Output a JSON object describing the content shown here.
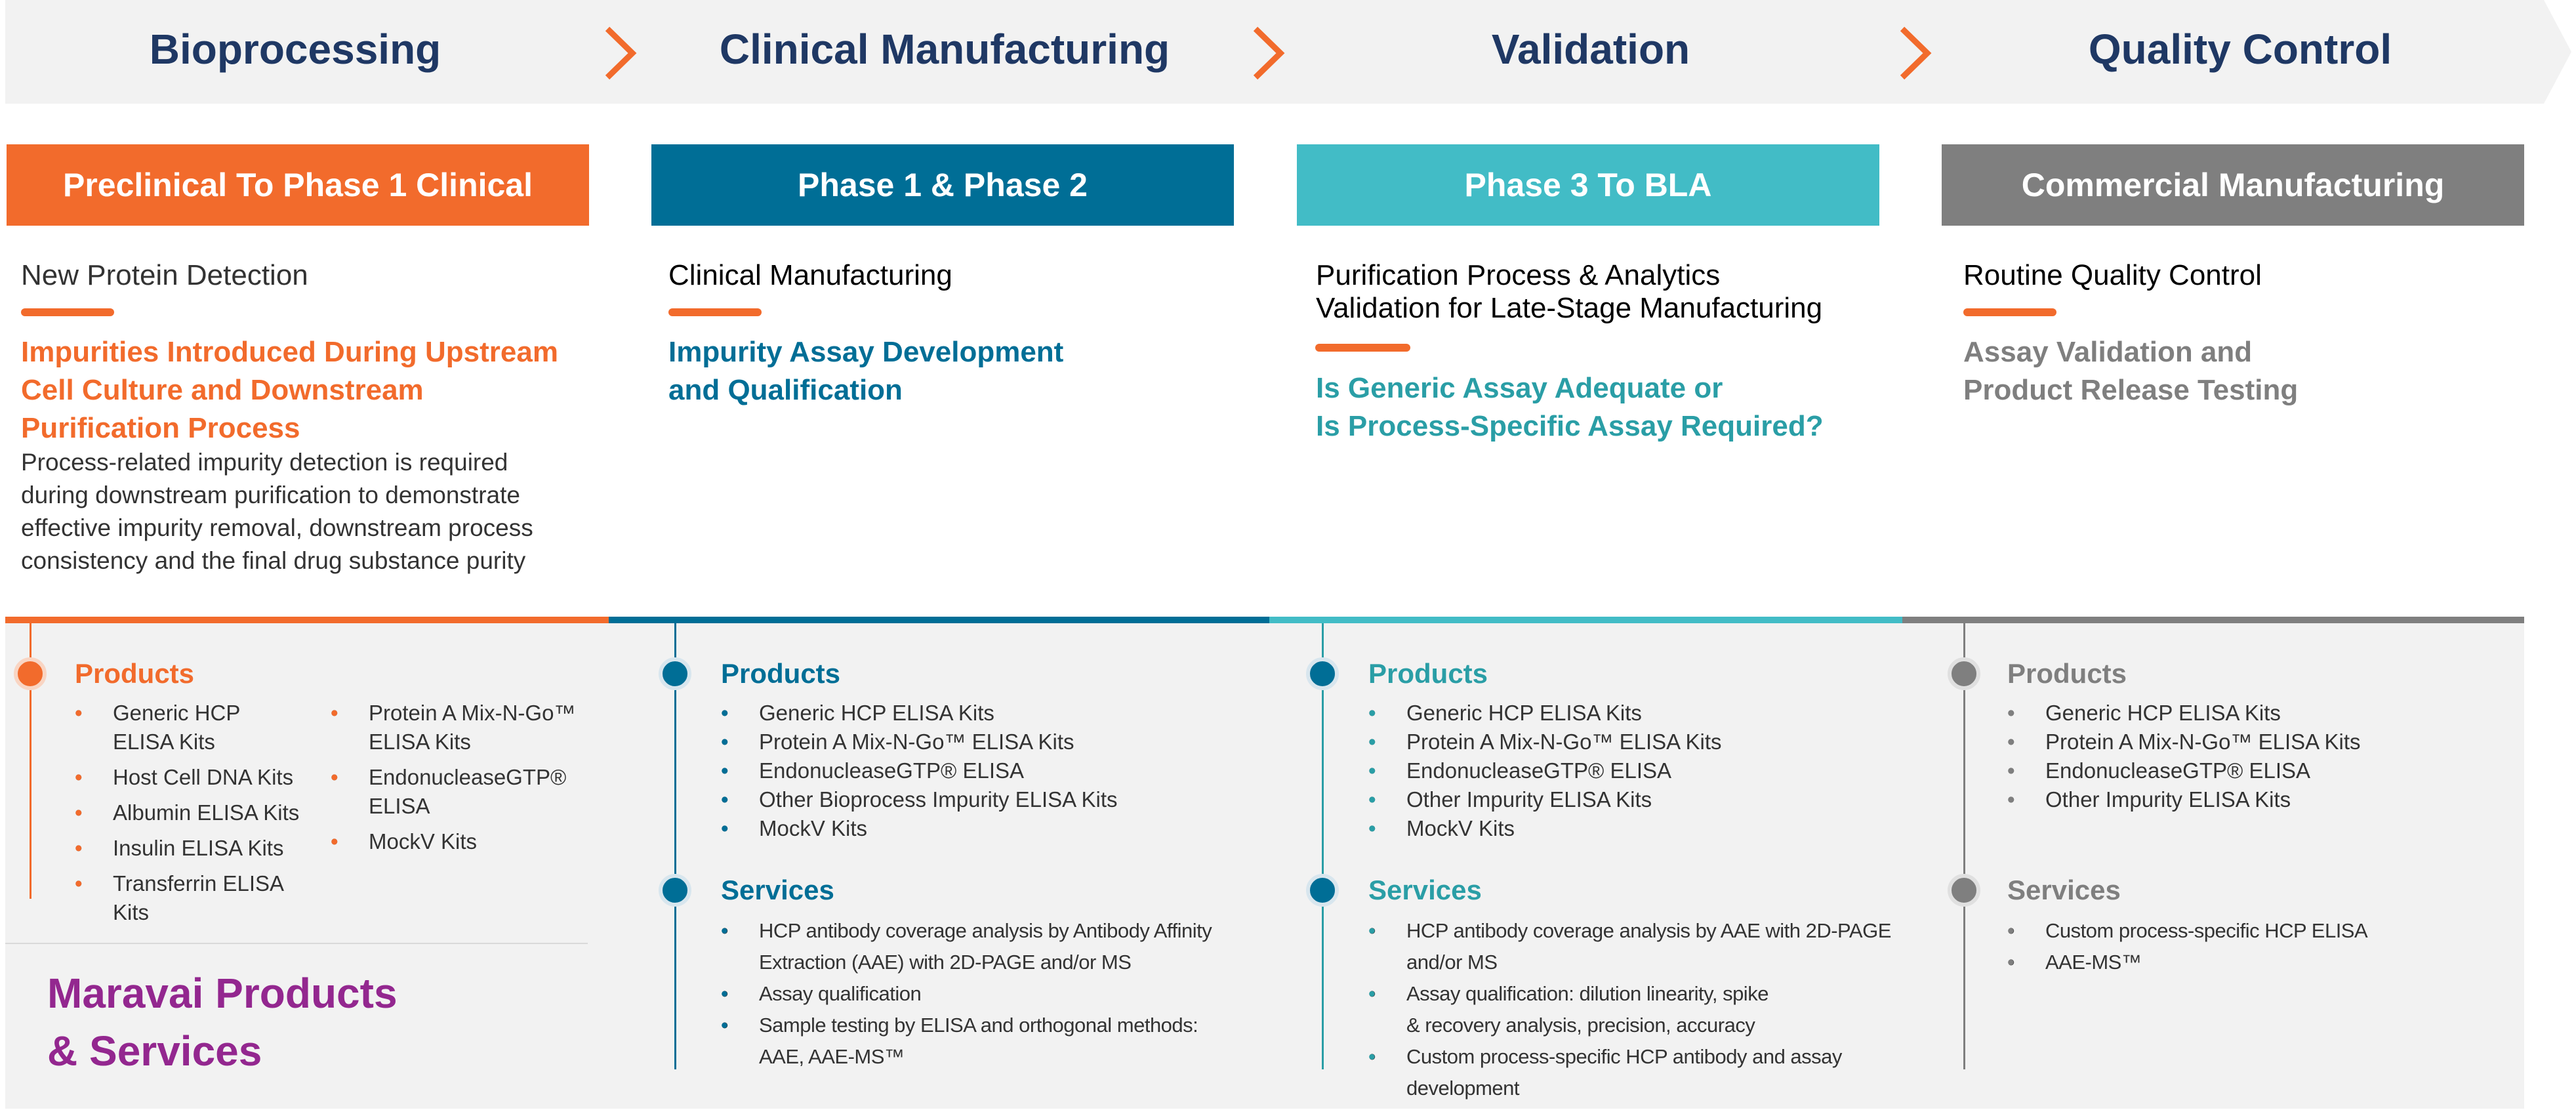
{
  "stages": [
    "Bioprocessing",
    "Clinical Manufacturing",
    "Validation",
    "Quality Control"
  ],
  "colors": {
    "orange": "#f26b2c",
    "blue": "#006e96",
    "teal": "#42bcc6",
    "gray": "#7f7f7f",
    "navy": "#1f3864",
    "purple": "#93278f",
    "teal_text": "#2a9ea6"
  },
  "columns": [
    {
      "phase": "Preclinical To Phase 1 Clinical",
      "subtitle": "New Protein Detection",
      "focus_lines": [
        "Impurities Introduced During  Upstream",
        "Cell Culture and  Downstream",
        "Purification Process"
      ],
      "description_lines": [
        "Process-related impurity detection  is required",
        "during downstream purification to demonstrate",
        "effective impurity removal,  downstream process",
        "consistency and the  final drug substance purity"
      ],
      "products_heading": "Products",
      "products_left": [
        "Generic HCP",
        "ELISA Kits",
        "Host Cell DNA Kits",
        "Albumin ELISA Kits",
        "Insulin ELISA Kits",
        "Transferrin ELISA Kits"
      ],
      "products_right": [
        "Protein A Mix-N-Go™",
        "ELISA Kits",
        "EndonucleaseGTP®",
        "ELISA",
        "MockV Kits"
      ]
    },
    {
      "phase": "Phase 1 & Phase 2",
      "subtitle": "Clinical Manufacturing",
      "focus_lines": [
        "Impurity Assay Development",
        "and Qualification"
      ],
      "products_heading": "Products",
      "products": [
        "Generic HCP ELISA Kits",
        "Protein A Mix-N-Go™ ELISA Kits",
        "EndonucleaseGTP® ELISA",
        "Other Bioprocess Impurity ELISA Kits",
        "MockV Kits"
      ],
      "services_heading": "Services",
      "services": [
        [
          "HCP antibody coverage analysis by Antibody Affinity",
          "Extraction (AAE) with 2D-PAGE and/or MS"
        ],
        [
          "Assay qualification"
        ],
        [
          "Sample testing by ELISA and orthogonal  methods:",
          "AAE, AAE-MS™"
        ]
      ]
    },
    {
      "phase": "Phase 3 To BLA",
      "subtitle_lines": [
        "Purification Process &  Analytics",
        "Validation for  Late-Stage Manufacturing"
      ],
      "focus_lines": [
        "Is Generic Assay Adequate or",
        "Is Process-Specific Assay Required?"
      ],
      "products_heading": "Products",
      "products": [
        "Generic HCP ELISA Kits",
        "Protein A Mix-N-Go™ ELISA Kits",
        "EndonucleaseGTP® ELISA",
        "Other Impurity ELISA Kits",
        "MockV Kits"
      ],
      "services_heading": "Services",
      "services": [
        [
          "HCP antibody coverage analysis by AAE with 2D-PAGE",
          "and/or MS"
        ],
        [
          "Assay qualification:  dilution linearity, spike",
          "& recovery analysis, precision, accuracy"
        ],
        [
          "Custom process-specific HCP antibody  and assay development"
        ]
      ]
    },
    {
      "phase": "Commercial Manufacturing",
      "subtitle": "Routine Quality Control",
      "focus_lines": [
        "Assay Validation and",
        "Product Release Testing"
      ],
      "products_heading": "Products",
      "products": [
        "Generic HCP ELISA Kits",
        "Protein A Mix-N-Go™ ELISA Kits",
        "EndonucleaseGTP® ELISA",
        "Other Impurity ELISA Kits"
      ],
      "services_heading": "Services",
      "services": [
        [
          "Custom process-specific HCP ELISA"
        ],
        [
          "AAE-MS™"
        ]
      ]
    }
  ],
  "maravai_title_lines": [
    "Maravai Products",
    "& Services"
  ]
}
